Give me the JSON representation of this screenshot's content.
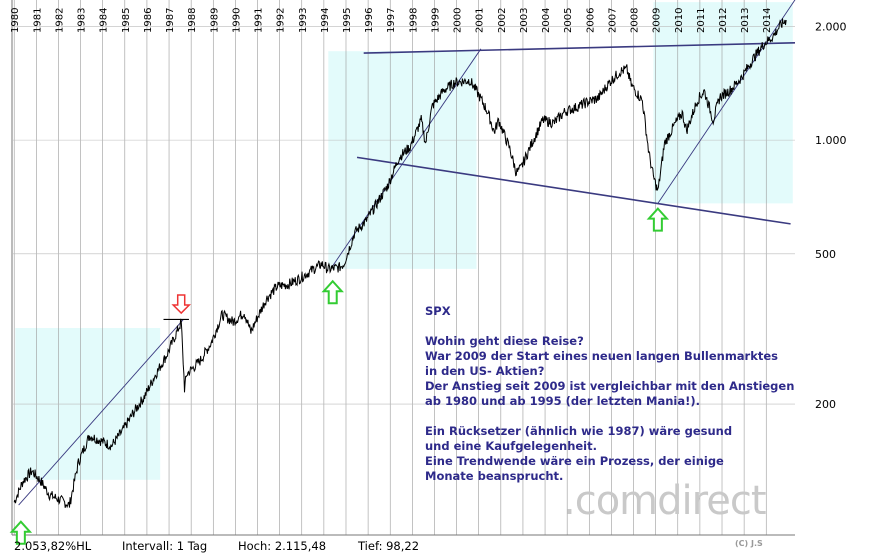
{
  "chart_data": {
    "type": "line",
    "ticker": "SPX",
    "x_tick_labels": [
      "1980",
      "1981",
      "1982",
      "1983",
      "1984",
      "1985",
      "1986",
      "1987",
      "1988",
      "1989",
      "1990",
      "1991",
      "1992",
      "1993",
      "1994",
      "1995",
      "1996",
      "1997",
      "1998",
      "1999",
      "2000",
      "2001",
      "2002",
      "2003",
      "2004",
      "2005",
      "2006",
      "2007",
      "2008",
      "2009",
      "2010",
      "2011",
      "2012",
      "2013",
      "2014"
    ],
    "y_ticks": [
      {
        "value": 200,
        "label": "200"
      },
      {
        "value": 500,
        "label": "500"
      },
      {
        "value": 1000,
        "label": "1.000"
      },
      {
        "value": 2000,
        "label": "2.000"
      }
    ],
    "y_scale": "log",
    "xlim": [
      1980.0,
      2015.4
    ],
    "ylim": [
      90,
      2350
    ],
    "series": [
      {
        "x": [
          1980.1,
          1980.5,
          1980.9,
          1981.3,
          1981.7,
          1982.1,
          1982.6,
          1983.0,
          1983.5,
          1984.0,
          1984.5,
          1985.0,
          1985.5,
          1986.0,
          1986.5,
          1987.0,
          1987.4,
          1987.65,
          1987.8,
          1987.9,
          1988.5,
          1989.0,
          1989.5,
          1990.0,
          1990.5,
          1990.8,
          1991.0,
          1991.5,
          1992.0,
          1992.5,
          1993.0,
          1993.5,
          1994.0,
          1994.3,
          1994.8,
          1995.0,
          1995.5,
          1996.0,
          1996.5,
          1997.0,
          1997.5,
          1998.0,
          1998.5,
          1998.7,
          1999.0,
          1999.5,
          2000.0,
          2000.7,
          2001.0,
          2001.5,
          2001.8,
          2002.0,
          2002.5,
          2002.8,
          2003.0,
          2003.5,
          2004.0,
          2004.5,
          2005.0,
          2005.5,
          2006.0,
          2006.5,
          2007.0,
          2007.5,
          2007.8,
          2008.0,
          2008.5,
          2008.8,
          2009.0,
          2009.2,
          2009.5,
          2010.0,
          2010.3,
          2010.5,
          2011.0,
          2011.3,
          2011.7,
          2012.0,
          2012.5,
          2013.0,
          2013.5,
          2014.0,
          2014.4,
          2014.7,
          2015.0
        ],
        "y": [
          110,
          125,
          133,
          125,
          115,
          112,
          108,
          140,
          165,
          160,
          155,
          170,
          190,
          210,
          240,
          270,
          305,
          330,
          220,
          240,
          260,
          290,
          345,
          330,
          350,
          310,
          330,
          380,
          410,
          415,
          430,
          450,
          470,
          455,
          460,
          470,
          570,
          610,
          680,
          760,
          900,
          960,
          1130,
          980,
          1230,
          1350,
          1420,
          1440,
          1350,
          1190,
          1050,
          1130,
          950,
          820,
          840,
          980,
          1130,
          1110,
          1190,
          1220,
          1260,
          1290,
          1420,
          1520,
          1540,
          1400,
          1270,
          920,
          800,
          730,
          980,
          1110,
          1180,
          1060,
          1280,
          1350,
          1130,
          1300,
          1360,
          1470,
          1640,
          1800,
          1880,
          2000,
          2080
        ]
      }
    ]
  },
  "annotations": {
    "title": "SPX",
    "lines": [
      "Wohin geht diese Reise?",
      "War 2009 der Start eines neuen langen Bullenmarktes",
      "in den US- Aktien?",
      "Der Anstieg seit 2009 ist vergleichbar mit den Anstiegen",
      "ab 1980 und ab 1995 (der letzten Mania!).",
      "",
      "Ein Rücksetzer (ähnlich wie 1987) wäre gesund",
      "und eine Kaufgelegenheit.",
      "Eine Trendwende wäre ein Prozess, der einige",
      "Monate beansprucht."
    ]
  },
  "footer": {
    "change": "2.053,82%HL",
    "interval": "Intervall: 1 Tag",
    "high": "Hoch:  2.115,48",
    "low": "Tief:   98,22"
  },
  "watermark": ".comdirect",
  "copyright": "(C) J.S",
  "colors": {
    "highlight_box": "#e3fbfb",
    "trend_line": "#3a3a80",
    "price_line": "#000000",
    "grid": "#9a9a9a",
    "up_arrow": "#33cc33",
    "down_arrow": "#ee3333",
    "text": "#2e2a8a"
  }
}
